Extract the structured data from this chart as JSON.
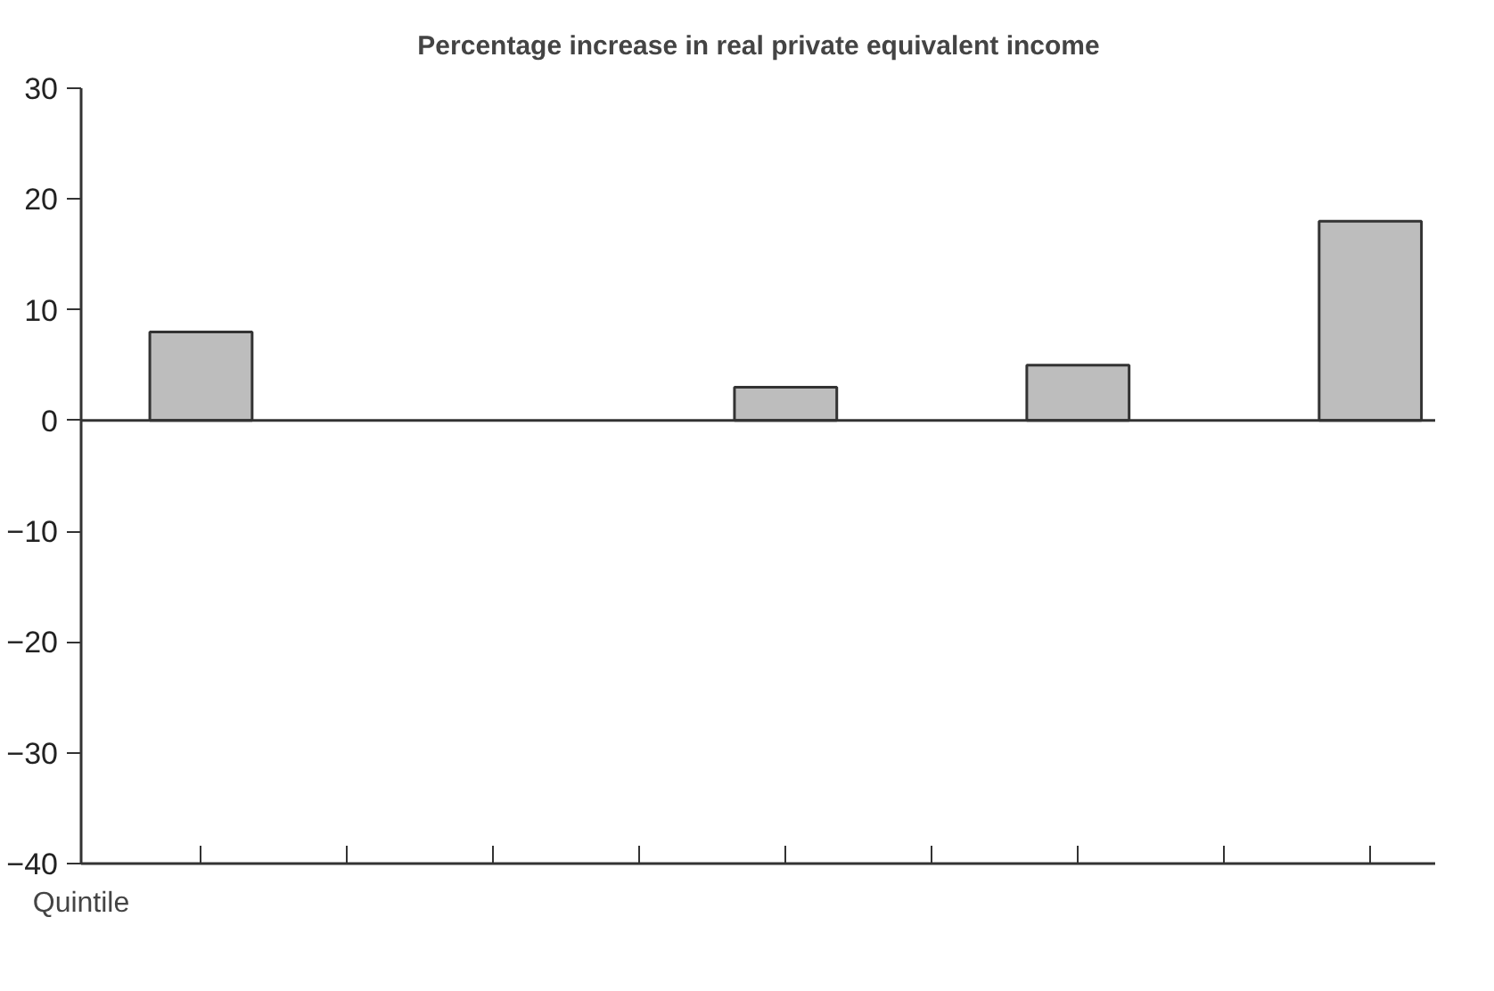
{
  "chart_data": {
    "type": "bar",
    "title": "Percentage increase in real private equivalent income",
    "xlabel": "Quintile",
    "categories": [
      null,
      null,
      null,
      null,
      null,
      null,
      null,
      null,
      null
    ],
    "values": [
      8,
      null,
      null,
      null,
      3,
      null,
      5,
      null,
      18
    ],
    "color": "#bdbdbd",
    "ylim": [
      -40,
      30
    ],
    "yticks": [
      {
        "value": -40,
        "label": "−40"
      },
      {
        "value": -30,
        "label": "−30"
      },
      {
        "value": -20,
        "label": "−20"
      },
      {
        "value": -10,
        "label": "−10"
      },
      0,
      10,
      20,
      30
    ],
    "ref_lines": [
      {
        "axis": "y",
        "value": 0,
        "label": null
      }
    ],
    "grid": false
  }
}
